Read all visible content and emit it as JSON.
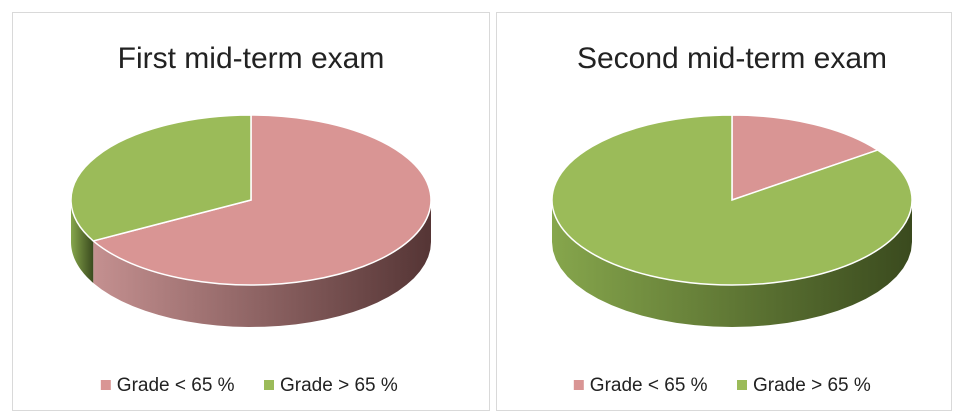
{
  "chart_data": [
    {
      "type": "pie",
      "title": "First mid-term exam",
      "categories": [
        "Grade < 65 %",
        "Grade > 65 %"
      ],
      "values": [
        67,
        33
      ],
      "colors": [
        "#d99594",
        "#9bbb59"
      ]
    },
    {
      "type": "pie",
      "title": "Second mid-term exam",
      "categories": [
        "Grade < 65 %",
        "Grade > 65 %"
      ],
      "values": [
        15,
        85
      ],
      "colors": [
        "#d99594",
        "#9bbb59"
      ]
    }
  ]
}
